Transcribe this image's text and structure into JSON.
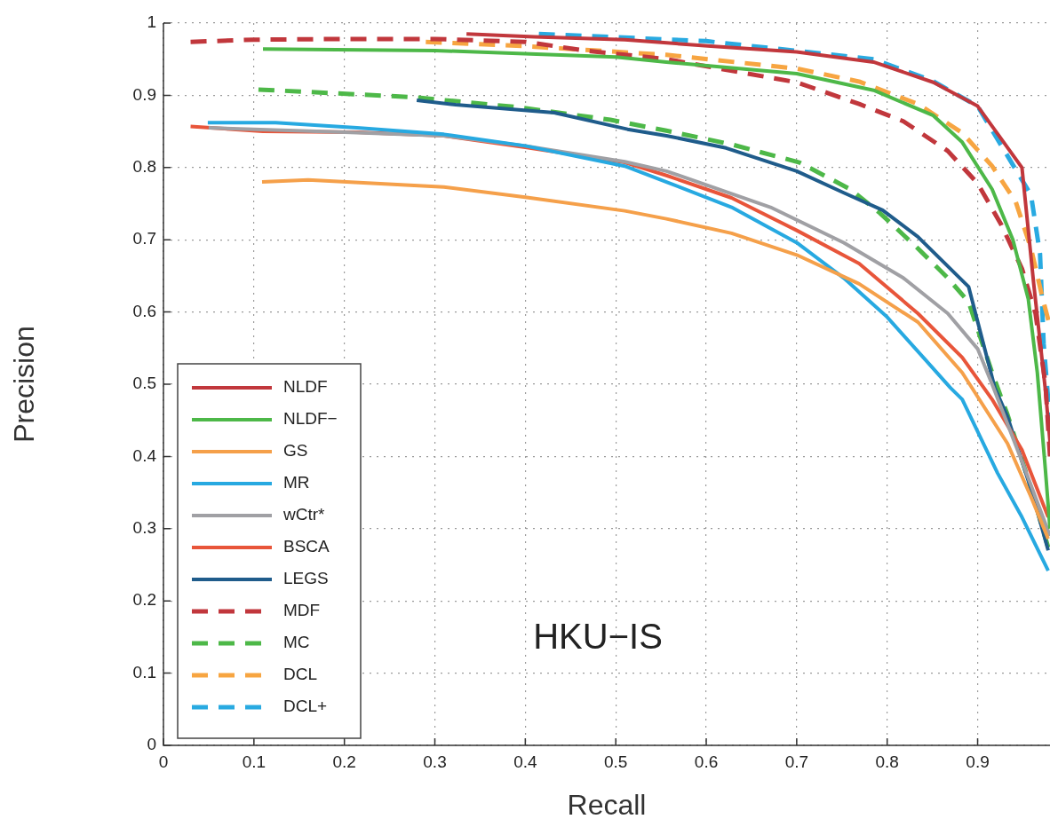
{
  "chart_data": {
    "type": "line",
    "xlabel": "Recall",
    "ylabel": "Precision",
    "annotations": [
      "HKU−IS"
    ],
    "xlim": [
      0,
      0.98
    ],
    "ylim": [
      0,
      1
    ],
    "xticks": [
      0,
      0.1,
      0.2,
      0.3,
      0.4,
      0.5,
      0.6,
      0.7,
      0.8,
      0.9
    ],
    "yticks": [
      0,
      0.1,
      0.2,
      0.3,
      0.4,
      0.5,
      0.6,
      0.7,
      0.8,
      0.9,
      1
    ],
    "grid": true,
    "legend": "bottom left",
    "series": [
      {
        "name": "NLDF",
        "color": "#c1373c",
        "line_style": "solid",
        "x": [
          0.335,
          0.41,
          0.51,
          0.605,
          0.7,
          0.785,
          0.851,
          0.9,
          0.949,
          0.962,
          0.975,
          0.98
        ],
        "values": [
          0.985,
          0.981,
          0.977,
          0.968,
          0.96,
          0.946,
          0.918,
          0.885,
          0.8,
          0.639,
          0.491,
          0.42
        ]
      },
      {
        "name": "NLDF−",
        "color": "#4db848",
        "line_style": "solid",
        "x": [
          0.11,
          0.3,
          0.5,
          0.556,
          0.7,
          0.785,
          0.851,
          0.883,
          0.916,
          0.939,
          0.956,
          0.966,
          0.975,
          0.98
        ],
        "values": [
          0.964,
          0.962,
          0.953,
          0.946,
          0.93,
          0.907,
          0.872,
          0.835,
          0.77,
          0.7,
          0.618,
          0.516,
          0.38,
          0.3
        ]
      },
      {
        "name": "GS",
        "color": "#f5a04a",
        "line_style": "solid",
        "x": [
          0.109,
          0.16,
          0.31,
          0.4,
          0.51,
          0.556,
          0.628,
          0.7,
          0.769,
          0.834,
          0.883,
          0.933,
          0.959,
          0.978
        ],
        "values": [
          0.78,
          0.783,
          0.773,
          0.759,
          0.74,
          0.729,
          0.709,
          0.679,
          0.639,
          0.586,
          0.516,
          0.418,
          0.344,
          0.286
        ]
      },
      {
        "name": "MR",
        "color": "#27a9e1",
        "line_style": "solid",
        "x": [
          0.049,
          0.124,
          0.214,
          0.31,
          0.4,
          0.51,
          0.556,
          0.628,
          0.7,
          0.752,
          0.8,
          0.84,
          0.87,
          0.883,
          0.922,
          0.949,
          0.978
        ],
        "values": [
          0.862,
          0.862,
          0.855,
          0.846,
          0.83,
          0.802,
          0.78,
          0.745,
          0.696,
          0.647,
          0.593,
          0.537,
          0.495,
          0.479,
          0.377,
          0.316,
          0.242
        ]
      },
      {
        "name": "wCtr*",
        "color": "#a0a0a4",
        "line_style": "solid",
        "x": [
          0.05,
          0.2,
          0.31,
          0.4,
          0.51,
          0.556,
          0.671,
          0.752,
          0.818,
          0.867,
          0.9,
          0.916,
          0.95,
          0.98
        ],
        "values": [
          0.855,
          0.849,
          0.844,
          0.83,
          0.808,
          0.795,
          0.745,
          0.696,
          0.647,
          0.598,
          0.549,
          0.5,
          0.39,
          0.29
        ]
      },
      {
        "name": "BSCA",
        "color": "#e8553a",
        "line_style": "solid",
        "x": [
          0.03,
          0.11,
          0.214,
          0.31,
          0.4,
          0.51,
          0.556,
          0.628,
          0.7,
          0.769,
          0.834,
          0.883,
          0.916,
          0.949,
          0.978
        ],
        "values": [
          0.857,
          0.85,
          0.849,
          0.844,
          0.828,
          0.807,
          0.789,
          0.758,
          0.713,
          0.667,
          0.598,
          0.537,
          0.479,
          0.409,
          0.316
        ]
      },
      {
        "name": "LEGS",
        "color": "#1f5c8b",
        "line_style": "solid",
        "x": [
          0.28,
          0.323,
          0.432,
          0.513,
          0.556,
          0.622,
          0.7,
          0.752,
          0.795,
          0.834,
          0.89,
          0.919,
          0.933,
          0.959,
          0.978
        ],
        "values": [
          0.893,
          0.887,
          0.876,
          0.853,
          0.844,
          0.827,
          0.795,
          0.765,
          0.741,
          0.704,
          0.635,
          0.495,
          0.455,
          0.355,
          0.27
        ]
      },
      {
        "name": "MDF",
        "color": "#c1373c",
        "line_style": "dashed",
        "x": [
          0.03,
          0.1,
          0.2,
          0.3,
          0.4,
          0.466,
          0.556,
          0.7,
          0.769,
          0.818,
          0.867,
          0.9,
          0.926,
          0.949,
          0.964,
          0.975,
          0.98
        ],
        "values": [
          0.974,
          0.977,
          0.978,
          0.978,
          0.974,
          0.962,
          0.95,
          0.918,
          0.888,
          0.864,
          0.823,
          0.778,
          0.721,
          0.66,
          0.598,
          0.5,
          0.4
        ]
      },
      {
        "name": "MC",
        "color": "#4db848",
        "line_style": "dashed",
        "x": [
          0.105,
          0.25,
          0.28,
          0.396,
          0.494,
          0.556,
          0.628,
          0.703,
          0.759,
          0.792,
          0.834,
          0.867,
          0.89,
          0.916,
          0.933,
          0.959,
          0.978
        ],
        "values": [
          0.908,
          0.899,
          0.897,
          0.883,
          0.866,
          0.851,
          0.832,
          0.807,
          0.77,
          0.737,
          0.688,
          0.647,
          0.614,
          0.516,
          0.458,
          0.356,
          0.274
        ]
      },
      {
        "name": "DCL",
        "color": "#f7a541",
        "line_style": "dashed",
        "x": [
          0.29,
          0.4,
          0.556,
          0.7,
          0.769,
          0.834,
          0.883,
          0.916,
          0.942,
          0.959,
          0.972,
          0.98
        ],
        "values": [
          0.974,
          0.968,
          0.956,
          0.937,
          0.919,
          0.888,
          0.848,
          0.802,
          0.753,
          0.688,
          0.618,
          0.58
        ]
      },
      {
        "name": "DCL+",
        "color": "#29aae1",
        "line_style": "dashed",
        "x": [
          0.415,
          0.6,
          0.785,
          0.85,
          0.9,
          0.959,
          0.969,
          0.973,
          0.978,
          0.98
        ],
        "values": [
          0.985,
          0.975,
          0.95,
          0.92,
          0.885,
          0.762,
          0.68,
          0.556,
          0.479,
          0.45
        ]
      }
    ]
  }
}
